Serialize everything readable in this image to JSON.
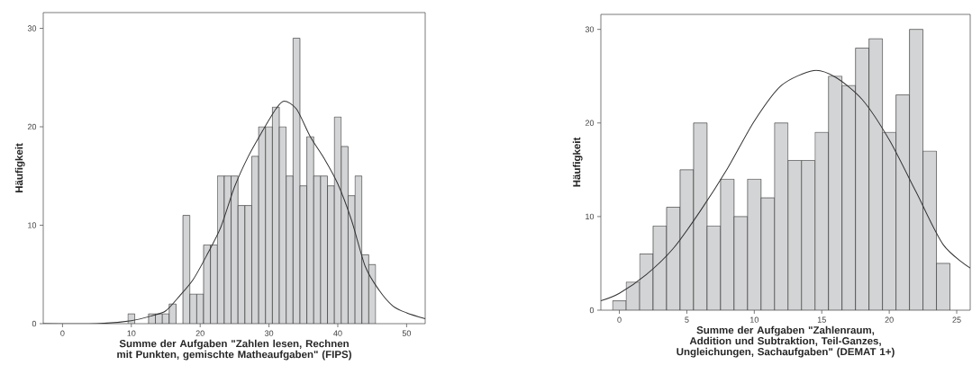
{
  "chart_data": [
    {
      "type": "histogram",
      "xlabel": "Summe der Aufgaben \"Zahlen lesen, Rechnen mit Punkten, gemischte Matheaufgaben\" (FIPS)",
      "ylabel": "Häufigkeit",
      "bins": [
        9.5,
        10.5,
        11.5,
        12.5,
        13.5,
        14.5,
        15.5,
        16.5,
        17.5,
        18.5,
        19.5,
        20.5,
        21.5,
        22.5,
        23.5,
        24.5,
        25.5,
        26.5,
        27.5,
        28.5,
        29.5,
        30.5,
        31.5,
        32.5,
        33.5,
        34.5,
        35.5,
        36.5,
        37.5,
        38.5,
        39.5,
        40.5,
        41.5,
        42.5,
        43.5,
        44.5,
        45.5
      ],
      "values": [
        1,
        0,
        0,
        1,
        1,
        1,
        2,
        0,
        11,
        3,
        3,
        8,
        8,
        15,
        15,
        15,
        12,
        12,
        17,
        20,
        20,
        22,
        20,
        15,
        29,
        14,
        19,
        15,
        15,
        14,
        21,
        18,
        13,
        15,
        7,
        6
      ],
      "color": "#d3d4d6",
      "series": [
        {
          "type": "line",
          "color": "#333333",
          "x": [
            -2.8,
            5,
            10,
            13,
            15,
            17,
            19,
            21,
            23,
            25,
            27,
            29,
            31,
            32.2,
            34,
            36,
            38,
            40,
            42,
            44,
            46,
            48,
            50,
            52.7
          ],
          "values": [
            0,
            0,
            0.3,
            0.8,
            1.3,
            2.8,
            4.5,
            7,
            9.8,
            13.9,
            17,
            19.5,
            21.8,
            22.6,
            21.8,
            19,
            16.8,
            14.2,
            10.5,
            5.8,
            3.4,
            1.8,
            1.1,
            0.5
          ]
        }
      ],
      "xlim": [
        -2.8,
        52.7
      ],
      "ylim": [
        0,
        31.6
      ],
      "xticks": [
        0,
        10,
        20,
        30,
        40,
        50
      ],
      "yticks": [
        0,
        10,
        20,
        30
      ]
    },
    {
      "type": "histogram",
      "xlabel": "Summe der Aufgaben \"Zahlenraum, Addition und Subtraktion, Teil-Ganzes, Ungleichungen, Sachaufgaben\" (DEMAT 1+)",
      "ylabel": "Häufigkeit",
      "bins": [
        -0.5,
        0.5,
        1.5,
        2.5,
        3.5,
        4.5,
        5.5,
        6.5,
        7.5,
        8.5,
        9.5,
        10.5,
        11.5,
        12.5,
        13.5,
        14.5,
        15.5,
        16.5,
        17.5,
        18.5,
        19.5,
        20.5,
        21.5,
        22.5,
        23.5,
        24.5
      ],
      "values": [
        1,
        3,
        6,
        9,
        11,
        15,
        20,
        9,
        14,
        10,
        14,
        12,
        20,
        16,
        16,
        19,
        25,
        24,
        28,
        29,
        19,
        23,
        30,
        17,
        5
      ],
      "color": "#d3d4d6",
      "series": [
        {
          "type": "line",
          "color": "#333333",
          "x": [
            -1.37,
            0,
            2,
            4,
            6,
            8,
            10,
            12,
            14.4,
            16,
            18,
            20,
            22,
            24,
            26
          ],
          "values": [
            1.0,
            1.8,
            3.8,
            6.6,
            10.6,
            15.1,
            20.2,
            24,
            25.6,
            24.9,
            22.5,
            18.2,
            12.6,
            7,
            4.5
          ]
        }
      ],
      "xlim": [
        -1.37,
        26
      ],
      "ylim": [
        0,
        31.6
      ],
      "xticks": [
        0,
        5,
        10,
        15,
        20,
        25
      ],
      "yticks": [
        0,
        10,
        20,
        30
      ]
    }
  ]
}
